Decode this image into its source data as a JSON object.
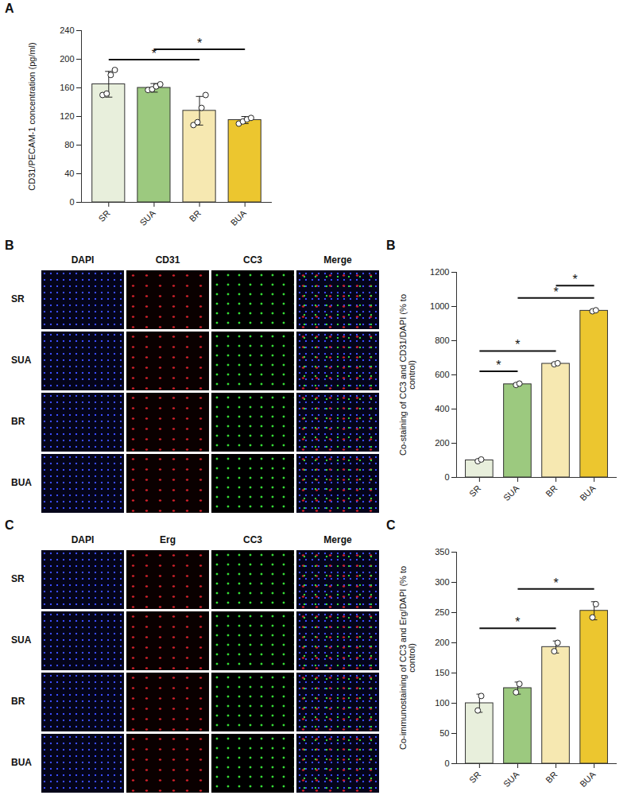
{
  "chart_data": [
    {
      "panel": "A",
      "type": "bar",
      "y_label": "CD31/PECAM-1 concentration (pg/ml)",
      "categories": [
        "SR",
        "SUA",
        "BR",
        "BUA"
      ],
      "values": [
        165,
        160,
        128,
        115
      ],
      "errors": [
        18,
        6,
        20,
        5
      ],
      "points": [
        [
          150,
          152,
          178,
          185
        ],
        [
          157,
          158,
          162,
          165
        ],
        [
          108,
          112,
          132,
          150
        ],
        [
          110,
          113,
          116,
          118
        ]
      ],
      "colors": [
        "#e8efdc",
        "#9cc97f",
        "#f6e8b1",
        "#ecc62f"
      ],
      "ylim": [
        0,
        240
      ],
      "yticks": [
        0,
        40,
        80,
        120,
        160,
        200,
        240
      ],
      "grid": false,
      "annotations": [
        {
          "from": "SR",
          "to": "BR",
          "label": "*"
        },
        {
          "from": "SUA",
          "to": "BUA",
          "label": "*"
        }
      ]
    },
    {
      "panel": "B",
      "type": "bar",
      "y_label": "Co-staining of CC3 and CD31/DAPI (% to control)",
      "categories": [
        "SR",
        "SUA",
        "BR",
        "BUA"
      ],
      "values": [
        100,
        545,
        665,
        975
      ],
      "errors": [
        5,
        4,
        3,
        3
      ],
      "points": [
        [
          95,
          105
        ],
        [
          541,
          549
        ],
        [
          662,
          668
        ],
        [
          972,
          978
        ]
      ],
      "colors": [
        "#e8efdc",
        "#9cc97f",
        "#f6e8b1",
        "#ecc62f"
      ],
      "ylim": [
        0,
        1200
      ],
      "yticks": [
        0,
        200,
        400,
        600,
        800,
        1000,
        1200
      ],
      "grid": false,
      "annotations": [
        {
          "from": "SR",
          "to": "SUA",
          "label": "*"
        },
        {
          "from": "SR",
          "to": "BR",
          "label": "*"
        },
        {
          "from": "SUA",
          "to": "BUA",
          "label": "*"
        },
        {
          "from": "BR",
          "to": "BUA",
          "label": "*"
        }
      ]
    },
    {
      "panel": "C",
      "type": "bar",
      "y_label": "Co-immunostaining of CC3 and Erg/DAPI (% to control)",
      "categories": [
        "SR",
        "SUA",
        "BR",
        "BUA"
      ],
      "values": [
        100,
        125,
        193,
        253
      ],
      "errors": [
        15,
        10,
        10,
        15
      ],
      "points": [
        [
          88,
          112
        ],
        [
          118,
          132
        ],
        [
          186,
          200
        ],
        [
          242,
          264
        ]
      ],
      "colors": [
        "#e8efdc",
        "#9cc97f",
        "#f6e8b1",
        "#ecc62f"
      ],
      "ylim": [
        0,
        350
      ],
      "yticks": [
        0,
        50,
        100,
        150,
        200,
        250,
        300,
        350
      ],
      "grid": false,
      "annotations": [
        {
          "from": "SR",
          "to": "BR",
          "label": "*"
        },
        {
          "from": "SUA",
          "to": "BUA",
          "label": "*"
        }
      ]
    }
  ],
  "image_grids": [
    {
      "panel": "B",
      "columns": [
        "DAPI",
        "CD31",
        "CC3",
        "Merge"
      ],
      "rows": [
        "SR",
        "SUA",
        "BR",
        "BUA"
      ]
    },
    {
      "panel": "C",
      "columns": [
        "DAPI",
        "Erg",
        "CC3",
        "Merge"
      ],
      "rows": [
        "SR",
        "SUA",
        "BR",
        "BUA"
      ]
    }
  ]
}
